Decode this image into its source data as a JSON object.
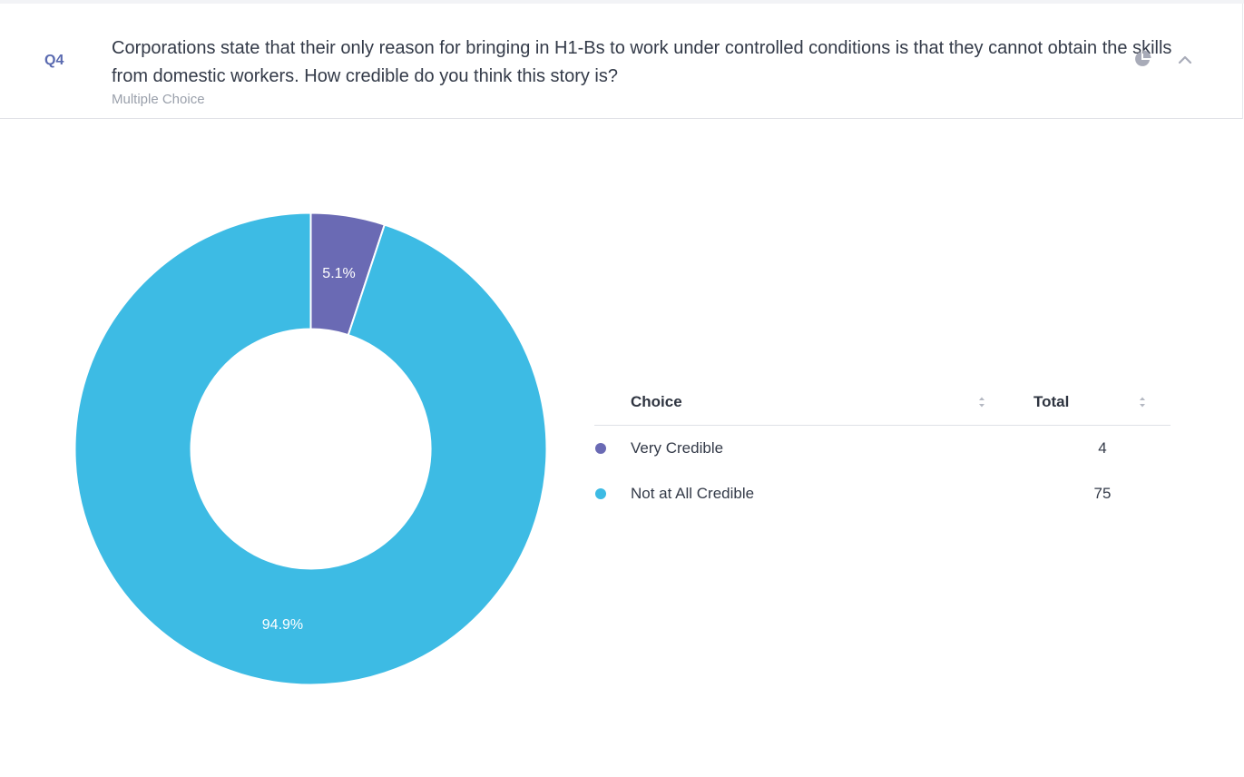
{
  "question": {
    "number": "Q4",
    "text": "Corporations state that their only reason for bringing in H1-Bs to work under controlled conditions is that they cannot obtain the skills from domestic workers. How credible do you think this story is?",
    "type": "Multiple Choice"
  },
  "icons": {
    "chart_toggle": "pie-chart-icon",
    "collapse": "chevron-up-icon"
  },
  "table": {
    "headers": {
      "choice": "Choice",
      "total": "Total"
    },
    "rows": [
      {
        "label": "Very Credible",
        "total": "4",
        "color": "#6a6ab4"
      },
      {
        "label": "Not at All Credible",
        "total": "75",
        "color": "#3dbbe4"
      }
    ]
  },
  "chart_data": {
    "type": "pie",
    "variant": "donut",
    "categories": [
      "Very Credible",
      "Not at All Credible"
    ],
    "values": [
      4,
      75
    ],
    "percent_labels": [
      "5.1%",
      "94.9%"
    ],
    "colors": [
      "#6a6ab4",
      "#3dbbe4"
    ],
    "start": "top",
    "direction": "clockwise"
  }
}
